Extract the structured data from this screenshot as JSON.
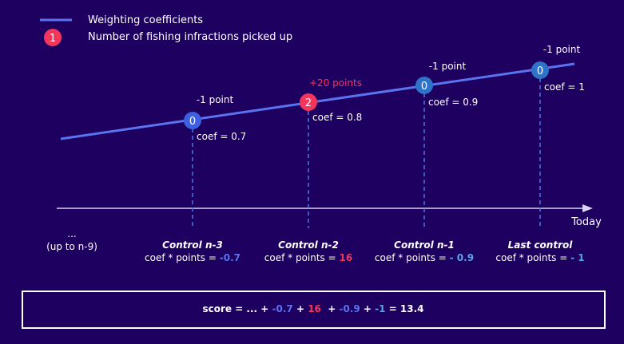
{
  "colors": {
    "background": "#1e0060",
    "line_blue": "#5b73ee",
    "marker_red": "#f5365c",
    "marker_blue": "#2f73c9",
    "text_white": "#ffffff",
    "points_red": "#f5365c",
    "value_blue": "#5b73ee",
    "value_lightblue": "#5ba3e6",
    "axis": "#d8d4ef",
    "dashed": "#4f78e0"
  },
  "legend": {
    "line_label": "Weighting coefficients",
    "marker_number": "1",
    "marker_label": "Number of fishing infractions picked up"
  },
  "axis": {
    "today_label": "Today",
    "earlier_ellipsis": "...",
    "earlier_label": "(up to n-9)"
  },
  "controls": [
    {
      "infractions": "0",
      "points_label": "-1 point",
      "coef_label": "coef = 0.7",
      "name": "Control n-3",
      "formula_prefix": "coef * points = ",
      "result": "-0.7",
      "marker_color": "#3e5fe0",
      "result_color": "#5b73ee",
      "points_color": "#ffffff"
    },
    {
      "infractions": "2",
      "points_label": "+20 points",
      "coef_label": "coef = 0.8",
      "name": "Control n-2",
      "formula_prefix": "coef * points = ",
      "result": "16",
      "marker_color": "#f5365c",
      "result_color": "#f5365c",
      "points_color": "#f5365c"
    },
    {
      "infractions": "0",
      "points_label": "-1 point",
      "coef_label": "coef = 0.9",
      "name": "Control n-1",
      "formula_prefix": "coef * points = ",
      "result": "- 0.9",
      "marker_color": "#2f73c9",
      "result_color": "#5ba3e6",
      "points_color": "#ffffff"
    },
    {
      "infractions": "0",
      "points_label": "-1 point",
      "coef_label": "coef = 1",
      "name": "Last control",
      "formula_prefix": "coef * points = ",
      "result": "- 1",
      "marker_color": "#2f73c9",
      "result_color": "#5ba3e6",
      "points_color": "#ffffff"
    }
  ],
  "score": {
    "label": "score",
    "equals": " = ... + ",
    "terms": [
      {
        "text": "-0.7",
        "color": "#5b73ee"
      },
      {
        "text": " + ",
        "color": "#ffffff"
      },
      {
        "text": "16",
        "color": "#f5365c"
      },
      {
        "text": "  + ",
        "color": "#ffffff"
      },
      {
        "text": "-0.9",
        "color": "#5b73ee"
      },
      {
        "text": " + ",
        "color": "#ffffff"
      },
      {
        "text": "-1",
        "color": "#5ba3e6"
      },
      {
        "text": " = ",
        "color": "#ffffff"
      },
      {
        "text": "13.4",
        "color": "#ffffff"
      }
    ]
  }
}
